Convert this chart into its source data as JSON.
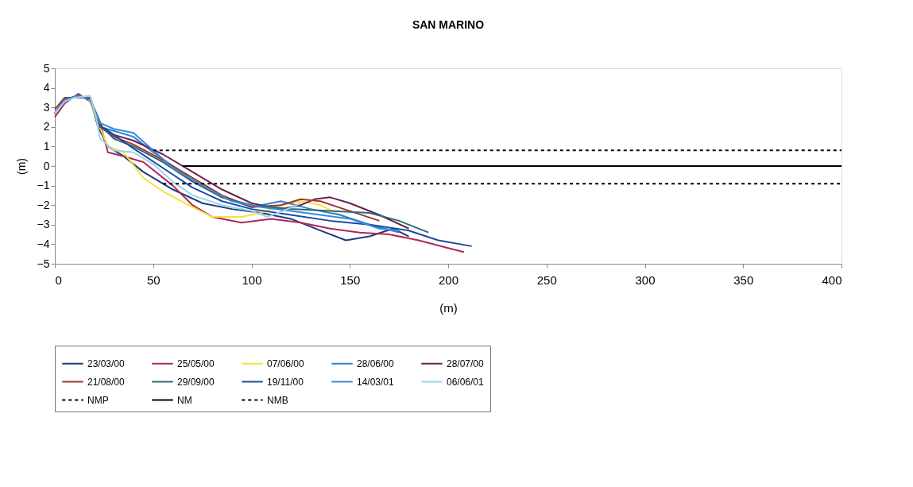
{
  "chart_data": {
    "type": "line",
    "title": "SAN MARINO",
    "xlabel": "(m)",
    "ylabel": "(m)",
    "xlim": [
      0,
      400
    ],
    "ylim": [
      -5,
      5
    ],
    "xticks": [
      0,
      50,
      100,
      150,
      200,
      250,
      300,
      350,
      400
    ],
    "yticks": [
      -5,
      -4,
      -3,
      -2,
      -1,
      0,
      1,
      2,
      3,
      4,
      5
    ],
    "grid": false,
    "legend": "bottom",
    "marker": "none",
    "series": [
      {
        "name": "23/03/00",
        "color": "#1f3a7a",
        "x": [
          0,
          5,
          12,
          18,
          22,
          27,
          35,
          45,
          60,
          75,
          90,
          105,
          120,
          135,
          148,
          160,
          172,
          180
        ],
        "values": [
          2.7,
          3.4,
          3.6,
          3.4,
          2.0,
          1.0,
          0.5,
          -0.3,
          -1.2,
          -1.9,
          -2.2,
          -2.4,
          -2.7,
          -3.3,
          -3.8,
          -3.6,
          -3.2,
          -3.6
        ]
      },
      {
        "name": "25/05/00",
        "color": "#b0275a",
        "x": [
          0,
          5,
          12,
          18,
          23,
          27,
          35,
          45,
          60,
          70,
          80,
          95,
          110,
          125,
          140,
          155,
          170,
          185,
          200,
          208
        ],
        "values": [
          2.5,
          3.2,
          3.7,
          3.3,
          2.2,
          0.7,
          0.5,
          0.2,
          -1.0,
          -2.0,
          -2.6,
          -2.9,
          -2.7,
          -2.9,
          -3.2,
          -3.4,
          -3.5,
          -3.8,
          -4.2,
          -4.4
        ]
      },
      {
        "name": "07/06/00",
        "color": "#f2e33a",
        "x": [
          12,
          17,
          22,
          27,
          35,
          45,
          55,
          70,
          80,
          95,
          105,
          115,
          125,
          135,
          147
        ],
        "values": [
          3.6,
          3.5,
          2.2,
          1.0,
          0.7,
          -0.6,
          -1.3,
          -2.1,
          -2.6,
          -2.6,
          -2.4,
          -2.0,
          -1.8,
          -2.0,
          -2.6
        ]
      },
      {
        "name": "28/06/00",
        "color": "#2f7fd0",
        "x": [
          0,
          5,
          12,
          18,
          23,
          30,
          40,
          50,
          60,
          70,
          85,
          100,
          115,
          130,
          145,
          160,
          175
        ],
        "values": [
          2.7,
          3.4,
          3.6,
          3.4,
          2.0,
          1.8,
          1.5,
          0.7,
          0.0,
          -0.7,
          -1.6,
          -2.1,
          -1.8,
          -2.2,
          -2.5,
          -3.0,
          -3.4
        ]
      },
      {
        "name": "28/07/00",
        "color": "#6b1f4f",
        "x": [
          0,
          5,
          12,
          18,
          24,
          30,
          40,
          55,
          70,
          85,
          100,
          115,
          125,
          132,
          140,
          150,
          165,
          180
        ],
        "values": [
          2.7,
          3.4,
          3.6,
          3.4,
          2.0,
          1.6,
          1.3,
          0.6,
          -0.3,
          -1.2,
          -1.9,
          -2.2,
          -2.0,
          -1.7,
          -1.6,
          -1.9,
          -2.5,
          -3.2
        ]
      },
      {
        "name": "21/08/00",
        "color": "#a0382a",
        "x": [
          0,
          5,
          12,
          18,
          23,
          30,
          40,
          55,
          70,
          85,
          100,
          115,
          125,
          135,
          150,
          165
        ],
        "values": [
          2.9,
          3.5,
          3.5,
          3.5,
          2.0,
          1.5,
          1.1,
          0.3,
          -0.6,
          -1.5,
          -2.1,
          -2.0,
          -1.7,
          -1.8,
          -2.3,
          -2.8
        ]
      },
      {
        "name": "29/09/00",
        "color": "#2a6a78",
        "x": [
          0,
          5,
          12,
          18,
          24,
          30,
          40,
          55,
          70,
          85,
          100,
          120,
          140,
          160,
          175,
          190
        ],
        "values": [
          2.7,
          3.4,
          3.6,
          3.4,
          2.0,
          1.4,
          1.0,
          0.2,
          -0.8,
          -1.6,
          -2.0,
          -2.2,
          -2.3,
          -2.4,
          -2.8,
          -3.4
        ]
      },
      {
        "name": "19/11/00",
        "color": "#1f4aa0",
        "x": [
          0,
          5,
          12,
          18,
          24,
          30,
          40,
          55,
          70,
          85,
          100,
          120,
          140,
          160,
          180,
          195,
          212
        ],
        "values": [
          2.7,
          3.4,
          3.6,
          3.4,
          2.0,
          1.6,
          0.9,
          -0.1,
          -1.1,
          -1.8,
          -2.2,
          -2.5,
          -2.8,
          -3.0,
          -3.3,
          -3.8,
          -4.1
        ]
      },
      {
        "name": "14/03/01",
        "color": "#3a8ad8",
        "x": [
          0,
          5,
          12,
          18,
          23,
          30,
          40,
          50,
          60,
          75,
          90,
          105,
          120,
          135,
          150,
          165,
          175
        ],
        "values": [
          2.7,
          3.4,
          3.6,
          3.4,
          2.2,
          1.9,
          1.7,
          0.8,
          -0.1,
          -1.0,
          -1.8,
          -2.1,
          -2.3,
          -2.5,
          -2.7,
          -3.2,
          -3.3
        ]
      },
      {
        "name": "06/06/01",
        "color": "#9dd4ef",
        "x": [
          0,
          5,
          10,
          18,
          21,
          23,
          30,
          40,
          50,
          60,
          70,
          85,
          100,
          108,
          116,
          125
        ],
        "values": [
          2.7,
          3.3,
          3.5,
          3.6,
          2.5,
          1.4,
          0.8,
          0.7,
          0.1,
          -0.8,
          -1.5,
          -2.0,
          -2.3,
          -2.6,
          -2.3,
          -1.9
        ]
      },
      {
        "name": "NMP",
        "color": "#000000",
        "line_style": "dashed",
        "x": [
          50,
          400
        ],
        "values": [
          0.8,
          0.8
        ]
      },
      {
        "name": "NM",
        "color": "#000000",
        "x": [
          65,
          400
        ],
        "values": [
          0,
          0
        ]
      },
      {
        "name": "NMB",
        "color": "#000000",
        "line_style": "dashed",
        "x": [
          55,
          400
        ],
        "values": [
          -0.9,
          -0.9
        ]
      }
    ]
  }
}
